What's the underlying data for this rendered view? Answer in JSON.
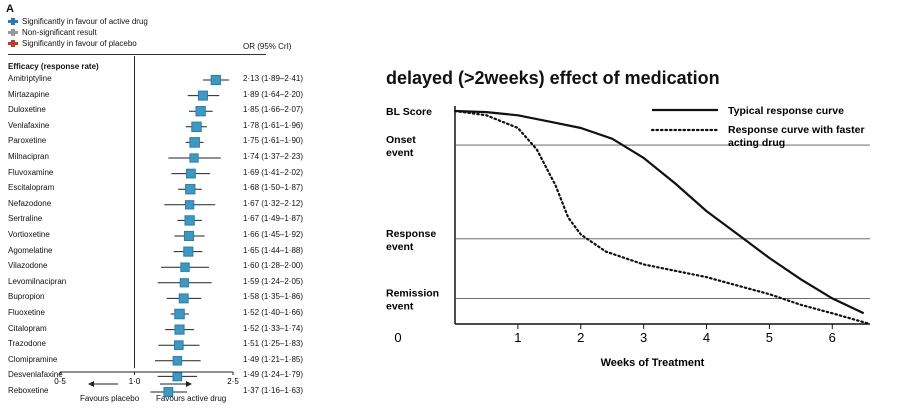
{
  "left_panel": {
    "panel_letter": "A",
    "legend": [
      {
        "label": "Significantly in favour of active drug",
        "color": "#2a7bb8"
      },
      {
        "label": "Non-significant result",
        "color": "#999999"
      },
      {
        "label": "Significantly in favour of placebo",
        "color": "#c0392b"
      }
    ],
    "or_header": "OR (95% CrI)",
    "section_title": "Efficacy (response rate)",
    "favours_placebo": "Favours placebo",
    "favours_active": "Favours active drug"
  },
  "right_panel": {
    "title": "delayed (>2weeks) effect of medication",
    "y_labels": [
      "BL Score",
      "Onset\nevent",
      "Response\nevent",
      "Remission\nevent"
    ],
    "legend_solid": "Typical response curve",
    "legend_dotted": "Response curve with faster acting drug",
    "xlabel": "Weeks of Treatment",
    "x_ticks": [
      "0",
      "1",
      "2",
      "3",
      "4",
      "5",
      "6"
    ]
  },
  "chart_data": [
    {
      "type": "forest",
      "title": "",
      "section": "Efficacy (response rate)",
      "x_scale": "log",
      "xlim": [
        0.5,
        2.5
      ],
      "x_ticks": [
        "0·5",
        "1·0",
        "2·5"
      ],
      "reference_line": 1.0,
      "rows": [
        {
          "drug": "Amitriptyline",
          "or": 2.13,
          "lo": 1.89,
          "hi": 2.41,
          "label": "2·13 (1·89–2·41)"
        },
        {
          "drug": "Mirtazapine",
          "or": 1.89,
          "lo": 1.64,
          "hi": 2.2,
          "label": "1·89 (1·64–2·20)"
        },
        {
          "drug": "Duloxetine",
          "or": 1.85,
          "lo": 1.66,
          "hi": 2.07,
          "label": "1·85 (1·66–2·07)"
        },
        {
          "drug": "Venlafaxine",
          "or": 1.78,
          "lo": 1.61,
          "hi": 1.96,
          "label": "1·78 (1·61–1·96)"
        },
        {
          "drug": "Paroxetine",
          "or": 1.75,
          "lo": 1.61,
          "hi": 1.9,
          "label": "1·75 (1·61–1·90)"
        },
        {
          "drug": "Milnacipran",
          "or": 1.74,
          "lo": 1.37,
          "hi": 2.23,
          "label": "1·74 (1·37–2·23)"
        },
        {
          "drug": "Fluvoxamine",
          "or": 1.69,
          "lo": 1.41,
          "hi": 2.02,
          "label": "1·69 (1·41–2·02)"
        },
        {
          "drug": "Escitalopram",
          "or": 1.68,
          "lo": 1.5,
          "hi": 1.87,
          "label": "1·68 (1·50–1·87)"
        },
        {
          "drug": "Nefazodone",
          "or": 1.67,
          "lo": 1.32,
          "hi": 2.12,
          "label": "1·67 (1·32–2·12)"
        },
        {
          "drug": "Sertraline",
          "or": 1.67,
          "lo": 1.49,
          "hi": 1.87,
          "label": "1·67 (1·49–1·87)"
        },
        {
          "drug": "Vortioxetine",
          "or": 1.66,
          "lo": 1.45,
          "hi": 1.92,
          "label": "1·66 (1·45–1·92)"
        },
        {
          "drug": "Agomelatine",
          "or": 1.65,
          "lo": 1.44,
          "hi": 1.88,
          "label": "1·65 (1·44–1·88)"
        },
        {
          "drug": "Vilazodone",
          "or": 1.6,
          "lo": 1.28,
          "hi": 2.0,
          "label": "1·60 (1·28–2·00)"
        },
        {
          "drug": "Levomilnacipran",
          "or": 1.59,
          "lo": 1.24,
          "hi": 2.05,
          "label": "1·59 (1·24–2·05)"
        },
        {
          "drug": "Bupropion",
          "or": 1.58,
          "lo": 1.35,
          "hi": 1.86,
          "label": "1·58 (1·35–1·86)"
        },
        {
          "drug": "Fluoxetine",
          "or": 1.52,
          "lo": 1.4,
          "hi": 1.66,
          "label": "1·52 (1·40–1·66)"
        },
        {
          "drug": "Citalopram",
          "or": 1.52,
          "lo": 1.33,
          "hi": 1.74,
          "label": "1·52 (1·33–1·74)"
        },
        {
          "drug": "Trazodone",
          "or": 1.51,
          "lo": 1.25,
          "hi": 1.83,
          "label": "1·51 (1·25–1·83)"
        },
        {
          "drug": "Clomipramine",
          "or": 1.49,
          "lo": 1.21,
          "hi": 1.85,
          "label": "1·49 (1·21–1·85)"
        },
        {
          "drug": "Desvenlafaxine",
          "or": 1.49,
          "lo": 1.24,
          "hi": 1.79,
          "label": "1·49 (1·24–1·79)"
        },
        {
          "drug": "Reboxetine",
          "or": 1.37,
          "lo": 1.16,
          "hi": 1.63,
          "label": "1·37 (1·16–1·63)"
        }
      ]
    },
    {
      "type": "line",
      "title": "delayed (>2weeks) effect of medication",
      "xlabel": "Weeks of Treatment",
      "ylabel": "",
      "xlim": [
        0,
        6.6
      ],
      "x_ticks": [
        0,
        1,
        2,
        3,
        4,
        5,
        6
      ],
      "y_scale_note": "0 = BL Score, 1 = bottom axis",
      "event_levels": {
        "BL Score": 0,
        "Onset event": 0.16,
        "Response event": 0.6,
        "Remission event": 0.88
      },
      "series": [
        {
          "name": "Typical response curve",
          "style": "solid",
          "points": [
            [
              0,
              0
            ],
            [
              0.5,
              0.005
            ],
            [
              1.0,
              0.02
            ],
            [
              1.5,
              0.05
            ],
            [
              2.0,
              0.08
            ],
            [
              2.5,
              0.13
            ],
            [
              3.0,
              0.22
            ],
            [
              3.5,
              0.34
            ],
            [
              4.0,
              0.47
            ],
            [
              4.5,
              0.58
            ],
            [
              5.0,
              0.69
            ],
            [
              5.5,
              0.79
            ],
            [
              6.0,
              0.88
            ],
            [
              6.5,
              0.95
            ]
          ]
        },
        {
          "name": "Response curve with faster acting drug",
          "style": "dotted",
          "points": [
            [
              0,
              0
            ],
            [
              0.5,
              0.02
            ],
            [
              1.0,
              0.08
            ],
            [
              1.3,
              0.18
            ],
            [
              1.6,
              0.35
            ],
            [
              1.8,
              0.5
            ],
            [
              2.0,
              0.58
            ],
            [
              2.4,
              0.66
            ],
            [
              3.0,
              0.72
            ],
            [
              3.5,
              0.75
            ],
            [
              4.0,
              0.78
            ],
            [
              4.5,
              0.82
            ],
            [
              5.0,
              0.86
            ],
            [
              5.5,
              0.91
            ],
            [
              6.0,
              0.95
            ],
            [
              6.6,
              1.0
            ]
          ]
        }
      ]
    }
  ]
}
